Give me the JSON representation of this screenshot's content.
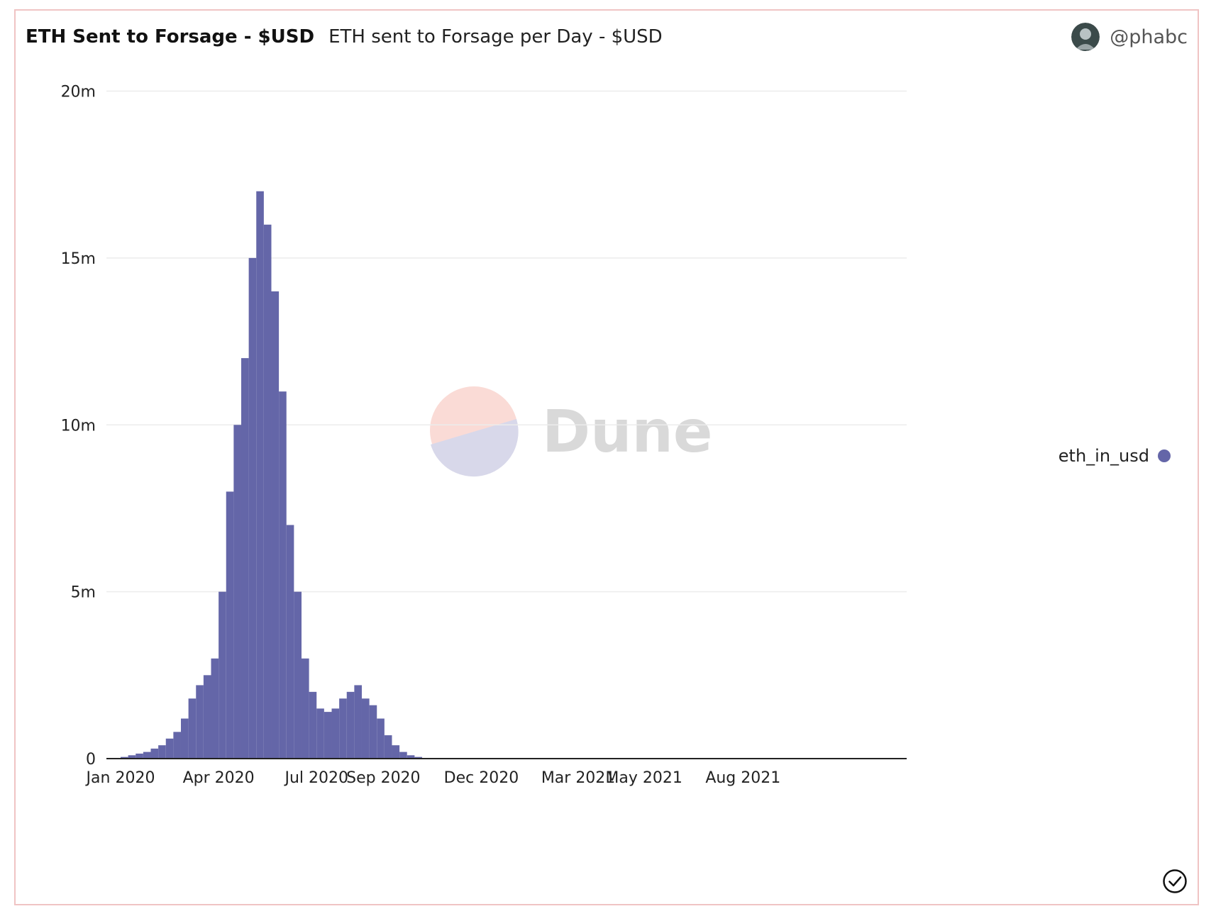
{
  "header": {
    "title": "ETH Sent to Forsage - $USD",
    "subtitle": "ETH sent to Forsage per Day - $USD",
    "username": "@phabc"
  },
  "watermark": {
    "text": "Dune"
  },
  "colors": {
    "bar": "#6466a8",
    "grid": "#ececec",
    "axis": "#222222",
    "watermark_top": "#fadbd6",
    "watermark_bottom": "#d8d8ea",
    "watermark_text": "#d9d9d9"
  },
  "chart_data": {
    "type": "bar",
    "x_start": "2020-01-01",
    "x_end": "2021-12-31",
    "ylim": [
      0,
      20500000
    ],
    "y_ticks": [
      {
        "value": 0,
        "label": "0"
      },
      {
        "value": 5000000,
        "label": "5m"
      },
      {
        "value": 10000000,
        "label": "10m"
      },
      {
        "value": 15000000,
        "label": "15m"
      },
      {
        "value": 20000000,
        "label": "20m"
      }
    ],
    "x_ticks": [
      {
        "date": "2020-01-01",
        "label": "Jan 2020"
      },
      {
        "date": "2020-04-01",
        "label": "Apr 2020"
      },
      {
        "date": "2020-07-01",
        "label": "Jul 2020"
      },
      {
        "date": "2020-09-01",
        "label": "Sep 2020"
      },
      {
        "date": "2020-12-01",
        "label": "Dec 2020"
      },
      {
        "date": "2021-03-01",
        "label": "Mar 2021"
      },
      {
        "date": "2021-05-01",
        "label": "May 2021"
      },
      {
        "date": "2021-08-01",
        "label": "Aug 2021"
      }
    ],
    "series": [
      {
        "name": "eth_in_usd",
        "start_date": "2020-01-01",
        "interval": "week",
        "values": [
          50000,
          100000,
          150000,
          200000,
          300000,
          400000,
          600000,
          800000,
          1200000,
          1800000,
          2200000,
          2500000,
          3000000,
          5000000,
          8000000,
          10000000,
          12000000,
          15000000,
          17000000,
          16000000,
          14000000,
          11000000,
          7000000,
          5000000,
          3000000,
          2000000,
          1500000,
          1400000,
          1500000,
          1800000,
          2000000,
          2200000,
          1800000,
          1600000,
          1200000,
          700000,
          400000,
          200000,
          100000,
          50000,
          20000,
          10000,
          5000,
          3000,
          1000,
          1000,
          1000
        ]
      }
    ],
    "grid": true,
    "legend_position": "right"
  }
}
